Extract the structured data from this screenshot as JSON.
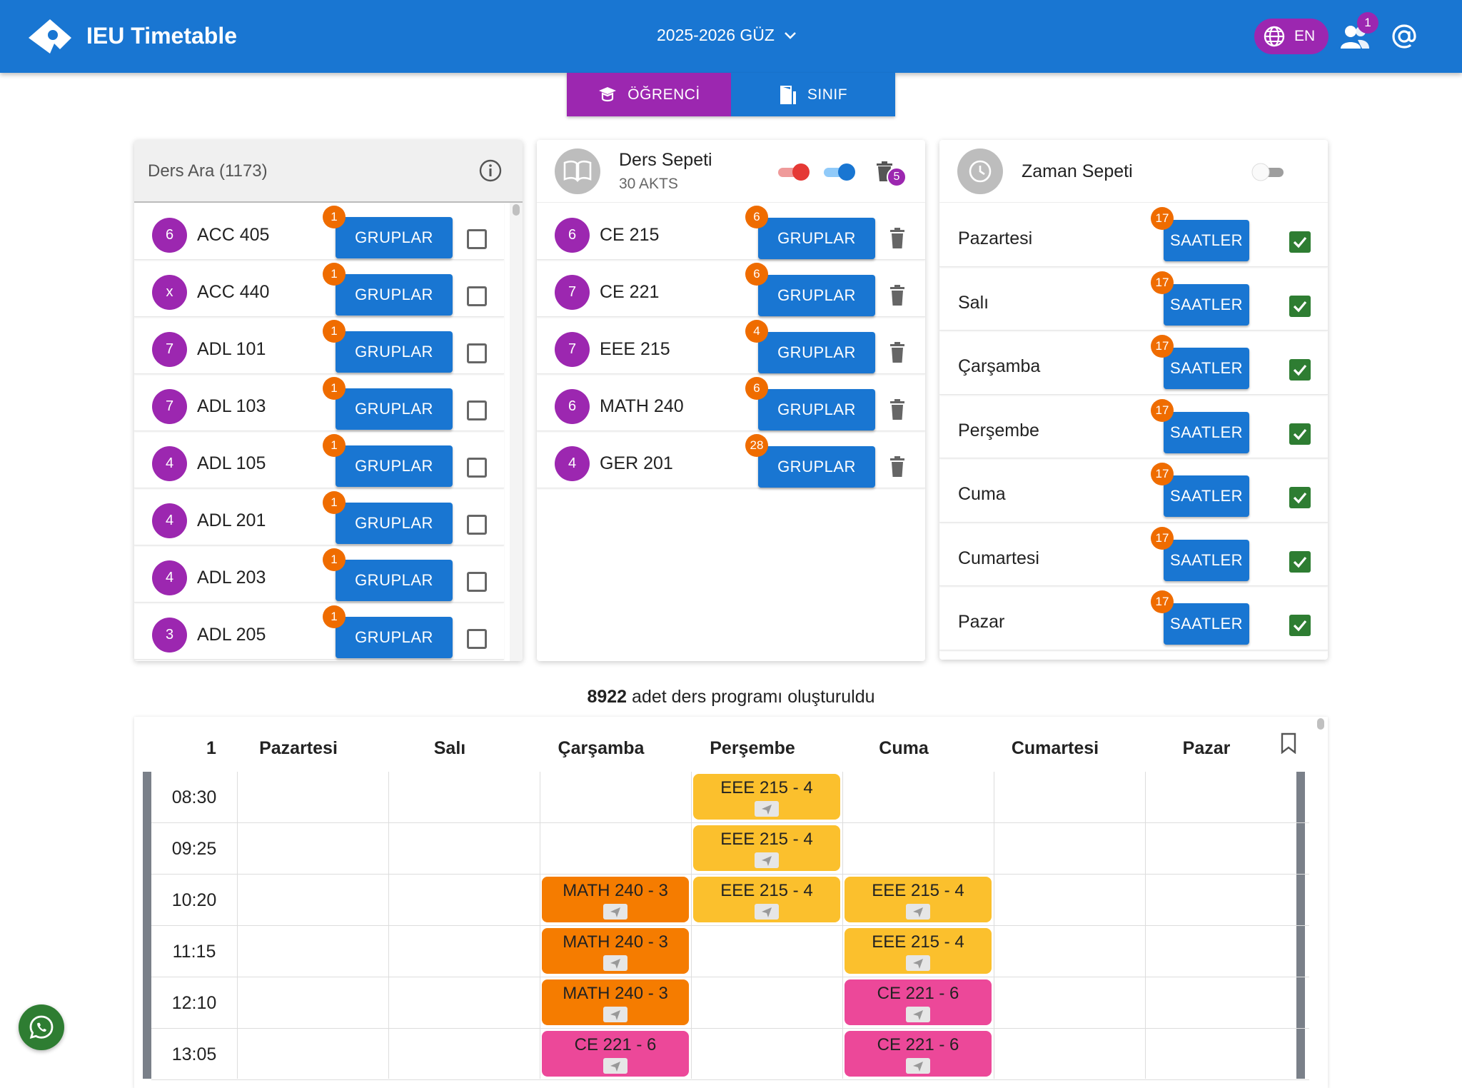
{
  "header": {
    "app_title": "IEU Timetable",
    "term": "2025-2026 GÜZ",
    "lang": "EN",
    "users_badge": "1"
  },
  "mode_tabs": [
    {
      "label": "ÖĞRENCİ",
      "active": true
    },
    {
      "label": "SINIF",
      "active": false
    }
  ],
  "search_panel": {
    "title": "Ders Ara (1173)",
    "button_label": "GRUPLAR",
    "items": [
      {
        "avatar": "6",
        "code": "ACC 405",
        "badge": "1"
      },
      {
        "avatar": "x",
        "code": "ACC 440",
        "badge": "1"
      },
      {
        "avatar": "7",
        "code": "ADL 101",
        "badge": "1"
      },
      {
        "avatar": "7",
        "code": "ADL 103",
        "badge": "1"
      },
      {
        "avatar": "4",
        "code": "ADL 105",
        "badge": "1"
      },
      {
        "avatar": "4",
        "code": "ADL 201",
        "badge": "1"
      },
      {
        "avatar": "4",
        "code": "ADL 203",
        "badge": "1"
      },
      {
        "avatar": "3",
        "code": "ADL 205",
        "badge": "1"
      }
    ]
  },
  "course_basket": {
    "title": "Ders Sepeti",
    "subtitle": "30 AKTS",
    "trash_badge": "5",
    "button_label": "GRUPLAR",
    "items": [
      {
        "avatar": "6",
        "code": "CE 215",
        "badge": "6"
      },
      {
        "avatar": "7",
        "code": "CE 221",
        "badge": "6"
      },
      {
        "avatar": "7",
        "code": "EEE 215",
        "badge": "4"
      },
      {
        "avatar": "6",
        "code": "MATH 240",
        "badge": "6"
      },
      {
        "avatar": "4",
        "code": "GER 201",
        "badge": "28"
      }
    ]
  },
  "time_basket": {
    "title": "Zaman Sepeti",
    "button_label": "SAATLER",
    "days": [
      {
        "name": "Pazartesi",
        "badge": "17"
      },
      {
        "name": "Salı",
        "badge": "17"
      },
      {
        "name": "Çarşamba",
        "badge": "17"
      },
      {
        "name": "Perşembe",
        "badge": "17"
      },
      {
        "name": "Cuma",
        "badge": "17"
      },
      {
        "name": "Cumartesi",
        "badge": "17"
      },
      {
        "name": "Pazar",
        "badge": "17"
      }
    ]
  },
  "summary": {
    "count": "8922",
    "text": " adet ders programı oluşturuldu"
  },
  "timetable": {
    "index": "1",
    "days": [
      "Pazartesi",
      "Salı",
      "Çarşamba",
      "Perşembe",
      "Cuma",
      "Cumartesi",
      "Pazar"
    ],
    "times": [
      "08:30",
      "09:25",
      "10:20",
      "11:15",
      "12:10",
      "13:05"
    ],
    "events": [
      {
        "row": 0,
        "day": 3,
        "label": "EEE 215 - 4",
        "color": "yellow"
      },
      {
        "row": 1,
        "day": 3,
        "label": "EEE 215 - 4",
        "color": "yellow"
      },
      {
        "row": 2,
        "day": 2,
        "label": "MATH 240 - 3",
        "color": "orange"
      },
      {
        "row": 2,
        "day": 3,
        "label": "EEE 215 - 4",
        "color": "yellow"
      },
      {
        "row": 2,
        "day": 4,
        "label": "EEE 215 - 4",
        "color": "yellow"
      },
      {
        "row": 3,
        "day": 2,
        "label": "MATH 240 - 3",
        "color": "orange"
      },
      {
        "row": 3,
        "day": 4,
        "label": "EEE 215 - 4",
        "color": "yellow"
      },
      {
        "row": 4,
        "day": 2,
        "label": "MATH 240 - 3",
        "color": "orange"
      },
      {
        "row": 4,
        "day": 4,
        "label": "CE 221 - 6",
        "color": "pink"
      },
      {
        "row": 5,
        "day": 2,
        "label": "CE 221 - 6",
        "color": "pink"
      },
      {
        "row": 5,
        "day": 4,
        "label": "CE 221 - 6",
        "color": "pink"
      }
    ]
  },
  "colors": {
    "primary": "#1976d2",
    "accent": "#9c27b0",
    "badge": "#ef6c00",
    "check": "#2e7d32"
  }
}
